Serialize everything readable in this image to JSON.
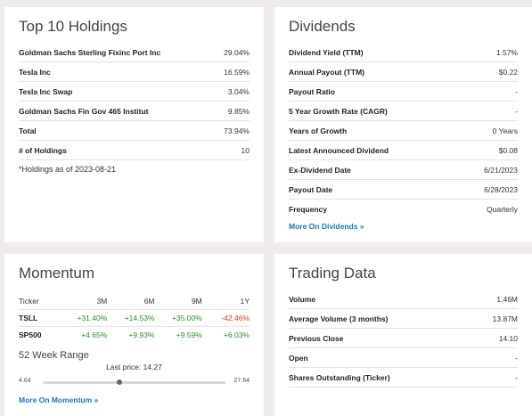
{
  "holdings": {
    "title": "Top 10 Holdings",
    "rows": [
      {
        "label": "Goldman Sachs Sterling Fixinc Port Inc",
        "value": "29.04%"
      },
      {
        "label": "Tesla Inc",
        "value": "16.59%"
      },
      {
        "label": "Tesla Inc Swap",
        "value": "3.04%"
      },
      {
        "label": "Goldman Sachs Fin Gov 465 Institut",
        "value": "9.85%"
      },
      {
        "label": "Total",
        "value": "73.94%"
      },
      {
        "label": "# of Holdings",
        "value": "10"
      }
    ],
    "note": "*Holdings as of 2023-08-21"
  },
  "dividends": {
    "title": "Dividends",
    "rows": [
      {
        "label": "Dividend Yield (TTM)",
        "value": "1.57%"
      },
      {
        "label": "Annual Payout (TTM)",
        "value": "$0.22"
      },
      {
        "label": "Payout Ratio",
        "value": "-"
      },
      {
        "label": "5 Year Growth Rate (CAGR)",
        "value": "-"
      },
      {
        "label": "Years of Growth",
        "value": "0 Years"
      },
      {
        "label": "Latest Announced Dividend",
        "value": "$0.08"
      },
      {
        "label": "Ex-Dividend Date",
        "value": "6/21/2023"
      },
      {
        "label": "Payout Date",
        "value": "6/28/2023"
      },
      {
        "label": "Frequency",
        "value": "Quarterly"
      }
    ],
    "more": "More On Dividends »"
  },
  "momentum": {
    "title": "Momentum",
    "headers": [
      "Ticker",
      "3M",
      "6M",
      "9M",
      "1Y"
    ],
    "rows": [
      {
        "ticker": "TSLL",
        "values": [
          "+31.40%",
          "+14.53%",
          "+35.00%",
          "-42.46%"
        ]
      },
      {
        "ticker": "SP500",
        "values": [
          "+4.65%",
          "+9.93%",
          "+9.59%",
          "+6.03%"
        ]
      }
    ],
    "range_title": "52 Week Range",
    "last_price": "Last price: 14.27",
    "low": "4.64",
    "high": "27.64",
    "range_position": 0.42,
    "more": "More On Momentum »"
  },
  "trading": {
    "title": "Trading Data",
    "rows": [
      {
        "label": "Volume",
        "value": "1.46M"
      },
      {
        "label": "Average Volume (3 months)",
        "value": "13.87M"
      },
      {
        "label": "Previous Close",
        "value": "14.10"
      },
      {
        "label": "Open",
        "value": "-"
      },
      {
        "label": "Shares Outstanding (Ticker)",
        "value": "-"
      }
    ]
  }
}
